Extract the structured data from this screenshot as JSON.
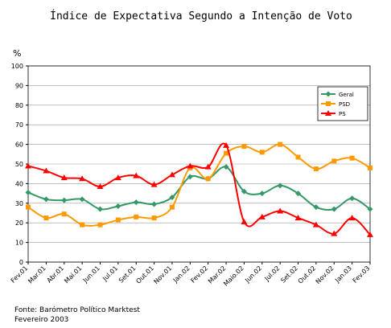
{
  "chart_data": {
    "type": "line",
    "title": "Índice de Expectativa Segundo a Intenção de Voto",
    "y_label": "%",
    "categories": [
      "Fev.01",
      "Mar.01",
      "Abr.01",
      "Mai.01",
      "Jun.01",
      "Jul.01",
      "Set.01",
      "Out.01",
      "Nov.01",
      "Jan.02",
      "Fev.02",
      "Mar.02",
      "Maio.02",
      "Jun.02",
      "Jul.02",
      "Set.02",
      "Out.02",
      "Nov.02",
      "Jan.03",
      "Fev.03"
    ],
    "series": [
      {
        "name": "Geral",
        "color": "#339966",
        "marker": "diamond",
        "values": [
          35.5,
          32,
          31.5,
          32,
          27,
          28.5,
          30.5,
          29.5,
          33,
          43.5,
          42.5,
          48.5,
          36,
          35,
          39,
          35,
          28,
          27,
          32.5,
          27
        ]
      },
      {
        "name": "PSD",
        "color": "#ff9900",
        "marker": "square",
        "values": [
          28,
          22.5,
          24.5,
          19,
          19,
          21.5,
          23,
          22.5,
          28,
          48,
          42.5,
          55.5,
          59,
          56,
          60,
          53.5,
          47.5,
          51.5,
          53,
          48
        ]
      },
      {
        "name": "PS",
        "color": "#ff0000",
        "marker": "triangle",
        "values": [
          49,
          46.5,
          43,
          42.5,
          38.5,
          43,
          44,
          39.5,
          44.5,
          49,
          48.5,
          59.5,
          20.5,
          23,
          26,
          22.5,
          19,
          14.5,
          22.5,
          14
        ]
      }
    ],
    "ylim": [
      0,
      100
    ],
    "yticks": [
      0,
      10,
      20,
      30,
      40,
      50,
      60,
      70,
      80,
      90,
      100
    ],
    "grid": true,
    "smooth": true,
    "legend": "upper right",
    "source": "Fonte: Barómetro Político Marktest",
    "date": "Fevereiro 2003"
  }
}
